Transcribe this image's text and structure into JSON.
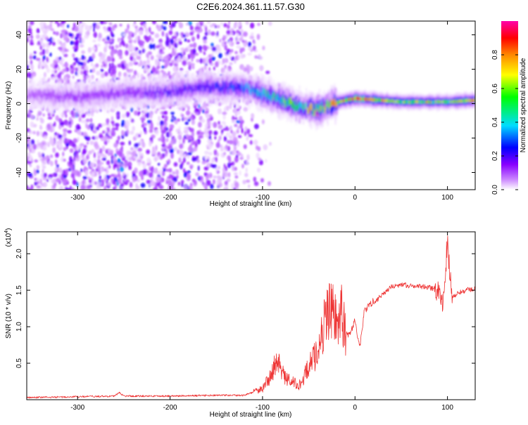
{
  "title": "C2E6.2024.361.11.57.G30",
  "chart_data": [
    {
      "type": "heatmap",
      "xlabel": "Height of straight line (km)",
      "ylabel": "Frequency (Hz)",
      "xlim": [
        -355,
        130
      ],
      "ylim": [
        -50,
        48
      ],
      "x_ticks": [
        -300,
        -200,
        -100,
        0,
        100
      ],
      "y_ticks": [
        -40,
        -20,
        0,
        20,
        40
      ],
      "colorbar": {
        "label": "Normalized spectral amplitude",
        "range": [
          0,
          1
        ],
        "ticks": [
          "0.0",
          "0.2",
          "0.4",
          "0.6",
          "0.8"
        ],
        "colormap": [
          "#ffffff",
          "#cc88ff",
          "#8800ff",
          "#0000ff",
          "#00ddff",
          "#00ff00",
          "#ffff00",
          "#ff8800",
          "#ff0000",
          "#ff00aa"
        ]
      },
      "tone_profile": {
        "x": [
          -350,
          -300,
          -250,
          -200,
          -160,
          -120,
          -100,
          -80,
          -60,
          -40,
          -25,
          -10,
          0,
          50,
          100,
          130
        ],
        "center_hz": [
          5,
          4,
          6,
          7,
          10,
          9,
          6,
          2,
          -2,
          -4,
          0,
          2,
          3,
          1,
          1,
          2
        ],
        "peak_amplitude": [
          0.15,
          0.2,
          0.2,
          0.25,
          0.3,
          0.35,
          0.45,
          0.5,
          0.55,
          0.6,
          0.65,
          0.7,
          0.8,
          0.55,
          0.6,
          0.65
        ]
      },
      "broadband_noise_region_x": [
        -355,
        -115
      ]
    },
    {
      "type": "line",
      "xlabel": "Height of straight line (km)",
      "ylabel": "SNR (10 * v/v)",
      "y_exponent_label": "(x10",
      "y_exponent": "4",
      "xlim": [
        -355,
        130
      ],
      "ylim": [
        0,
        2.3
      ],
      "x_ticks": [
        -300,
        -200,
        -100,
        0,
        100
      ],
      "y_ticks": [
        0.5,
        1.0,
        1.5,
        2.0
      ],
      "y_tick_labels": [
        "0.5",
        "1.0",
        "1.5",
        "2.0"
      ],
      "series": [
        {
          "color": "#ee3333",
          "x": [
            -355,
            -300,
            -260,
            -255,
            -250,
            -200,
            -150,
            -120,
            -100,
            -90,
            -85,
            -80,
            -75,
            -70,
            -60,
            -50,
            -45,
            -40,
            -35,
            -30,
            -25,
            -20,
            -15,
            -12,
            -10,
            -5,
            0,
            5,
            10,
            15,
            20,
            30,
            40,
            50,
            60,
            70,
            80,
            90,
            95,
            98,
            100,
            102,
            105,
            110,
            120,
            130
          ],
          "y": [
            0.03,
            0.04,
            0.05,
            0.1,
            0.05,
            0.05,
            0.06,
            0.06,
            0.15,
            0.35,
            0.55,
            0.4,
            0.3,
            0.25,
            0.2,
            0.45,
            0.55,
            0.7,
            0.95,
            1.2,
            1.3,
            1.0,
            1.2,
            1.05,
            0.9,
            0.9,
            1.1,
            0.7,
            1.2,
            1.3,
            1.35,
            1.45,
            1.55,
            1.58,
            1.56,
            1.55,
            1.54,
            1.5,
            1.35,
            1.75,
            2.25,
            1.8,
            1.4,
            1.45,
            1.5,
            1.52
          ]
        }
      ]
    }
  ]
}
